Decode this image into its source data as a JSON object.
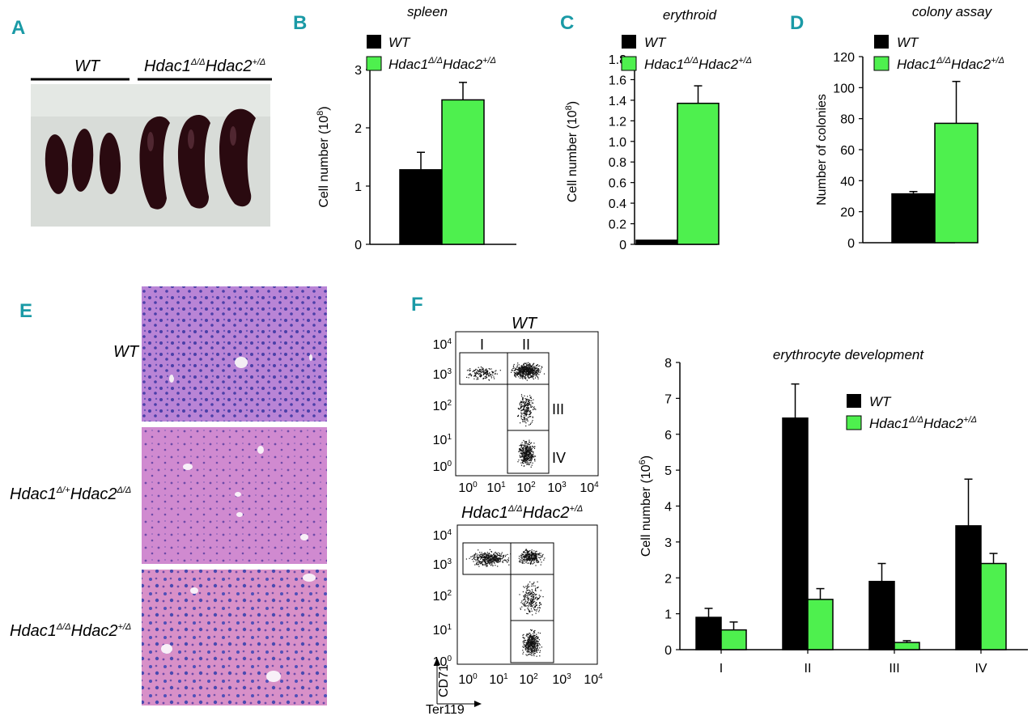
{
  "panels": {
    "A": "A",
    "B": "B",
    "C": "C",
    "D": "D",
    "E": "E",
    "F": "F"
  },
  "colors": {
    "wt": "#000000",
    "mut": "#4ef04e",
    "panel_letter": "#1a9aa6",
    "he_pink": "#c47bcf",
    "he_nuclei": "#4a3fa8",
    "spleen": "#2a0a10",
    "photo_bg": "#d8dcd8"
  },
  "legend": {
    "wt": "WT",
    "mut_a": "Hdac1",
    "mut_a_sup": "Δ/Δ",
    "mut_b": "Hdac2",
    "mut_b_sup": "+/Δ"
  },
  "panelA": {
    "wt_label": "WT",
    "mut_a": "Hdac1",
    "mut_a_sup": "Δ/Δ",
    "mut_b": "Hdac2",
    "mut_b_sup": "+/Δ"
  },
  "panelE": {
    "rows": [
      {
        "a": "WT",
        "a_sup": "",
        "b": "",
        "b_sup": ""
      },
      {
        "a": "Hdac1",
        "a_sup": "Δ/+",
        "b": "Hdac2",
        "b_sup": "Δ/Δ"
      },
      {
        "a": "Hdac1",
        "a_sup": "Δ/Δ",
        "b": "Hdac2",
        "b_sup": "+/Δ"
      }
    ]
  },
  "panelF": {
    "wt_title": "WT",
    "mut_a": "Hdac1",
    "mut_a_sup": "Δ/Δ",
    "mut_b": "Hdac2",
    "mut_b_sup": "+/Δ",
    "gates": [
      "I",
      "II",
      "III",
      "IV"
    ],
    "y_axis_label": "CD71",
    "x_axis_label": "Ter119",
    "decades": [
      "10",
      "10",
      "10",
      "10",
      "10"
    ],
    "decade_exp": [
      "0",
      "1",
      "2",
      "3",
      "4"
    ]
  },
  "chart_data": [
    {
      "id": "B",
      "type": "bar",
      "title": "spleen",
      "ylabel_base": "Cell number (10",
      "ylabel_exp": "8",
      "ylabel_end": ")",
      "ylim": [
        0,
        3
      ],
      "yticks": [
        "0",
        "1",
        "2",
        "3"
      ],
      "series": [
        {
          "name": "WT",
          "values": [
            1.28
          ],
          "errors": [
            0.3
          ]
        },
        {
          "name": "Hdac1Δ/ΔHdac2+/Δ",
          "values": [
            2.48
          ],
          "errors": [
            0.3
          ]
        }
      ]
    },
    {
      "id": "C",
      "type": "bar",
      "title": "erythroid",
      "ylabel_base": "Cell number (10",
      "ylabel_exp": "8",
      "ylabel_end": ")",
      "ylim": [
        0,
        1.8
      ],
      "yticks": [
        "0",
        "0.2",
        "0.4",
        "0.6",
        "0.8",
        "1.0",
        "1.2",
        "1.4",
        "1.6",
        "1.8"
      ],
      "series": [
        {
          "name": "WT",
          "values": [
            0.04
          ],
          "errors": [
            0
          ]
        },
        {
          "name": "Hdac1Δ/ΔHdac2+/Δ",
          "values": [
            1.37
          ],
          "errors": [
            0.17
          ]
        }
      ]
    },
    {
      "id": "D",
      "type": "bar",
      "title": "colony assay",
      "ylabel": "Number of colonies",
      "ylim": [
        0,
        120
      ],
      "yticks": [
        "0",
        "20",
        "40",
        "60",
        "80",
        "100",
        "120"
      ],
      "series": [
        {
          "name": "WT",
          "values": [
            31.5
          ],
          "errors": [
            1.5
          ]
        },
        {
          "name": "Hdac1Δ/ΔHdac2+/Δ",
          "values": [
            77
          ],
          "errors": [
            27
          ]
        }
      ]
    },
    {
      "id": "F",
      "type": "bar",
      "title": "erythrocyte development",
      "ylabel_base": "Cell number (10",
      "ylabel_exp": "6",
      "ylabel_end": ")",
      "ylim": [
        0,
        8
      ],
      "yticks": [
        "0",
        "1",
        "2",
        "3",
        "4",
        "5",
        "6",
        "7",
        "8"
      ],
      "categories": [
        "I",
        "II",
        "III",
        "IV"
      ],
      "series": [
        {
          "name": "WT",
          "values": [
            0.9,
            6.45,
            1.9,
            3.45
          ],
          "errors": [
            0.25,
            0.95,
            0.5,
            1.3
          ]
        },
        {
          "name": "Hdac1Δ/ΔHdac2+/Δ",
          "values": [
            0.55,
            1.4,
            0.2,
            2.4
          ],
          "errors": [
            0.22,
            0.3,
            0.05,
            0.28
          ]
        }
      ]
    }
  ]
}
